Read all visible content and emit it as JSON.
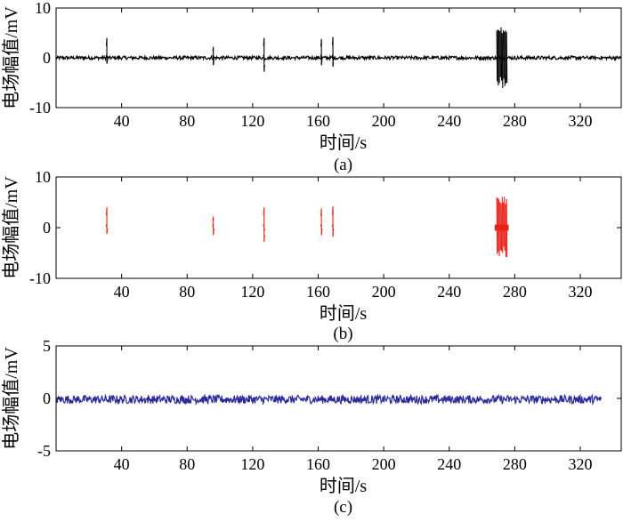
{
  "chart_data": [
    {
      "type": "line",
      "caption": "(a)",
      "xlabel": "时间/s",
      "ylabel": "电场幅值/mV",
      "xlim": [
        0,
        345
      ],
      "ylim": [
        -10,
        10
      ],
      "xticks": [
        "40",
        "80",
        "120",
        "160",
        "200",
        "240",
        "280",
        "320"
      ],
      "yticks": [
        "10",
        "0",
        "-10"
      ],
      "color": "#000000",
      "baseline": {
        "x_start": 0,
        "x_end": 345,
        "amplitude": 0.35
      },
      "spikes": [
        {
          "x": 31,
          "max": 4.0,
          "min": -1.2
        },
        {
          "x": 96,
          "max": 2.2,
          "min": -1.5
        },
        {
          "x": 127,
          "max": 4.0,
          "min": -2.8
        },
        {
          "x": 162,
          "max": 3.8,
          "min": -1.5
        },
        {
          "x": 169,
          "max": 4.2,
          "min": -1.8
        },
        {
          "x": 272,
          "max": 6.2,
          "min": -6.2,
          "width": 6
        }
      ]
    },
    {
      "type": "line",
      "caption": "(b)",
      "xlabel": "时间/s",
      "ylabel": "电场幅值/mV",
      "xlim": [
        0,
        345
      ],
      "ylim": [
        -10,
        10
      ],
      "xticks": [
        "40",
        "80",
        "120",
        "160",
        "200",
        "240",
        "280",
        "320"
      ],
      "yticks": [
        "10",
        "0",
        "-10"
      ],
      "color": "#e8231a",
      "baseline": null,
      "spikes": [
        {
          "x": 31,
          "max": 4.0,
          "min": -1.2
        },
        {
          "x": 96,
          "max": 2.2,
          "min": -1.5
        },
        {
          "x": 127,
          "max": 4.0,
          "min": -2.8
        },
        {
          "x": 162,
          "max": 3.8,
          "min": -1.5
        },
        {
          "x": 169,
          "max": 4.2,
          "min": -1.8
        },
        {
          "x": 272,
          "max": 6.2,
          "min": -6.2,
          "width": 6
        }
      ]
    },
    {
      "type": "line",
      "caption": "(c)",
      "xlabel": "时间/s",
      "ylabel": "电场幅值/mV",
      "xlim": [
        0,
        345
      ],
      "ylim": [
        -5,
        5
      ],
      "xticks": [
        "40",
        "80",
        "120",
        "160",
        "200",
        "240",
        "280",
        "320"
      ],
      "yticks": [
        "5",
        "0",
        "-5"
      ],
      "color": "#2a2a9a",
      "baseline": {
        "x_start": 0,
        "x_end": 333,
        "amplitude": 0.4,
        "offset": -0.1
      },
      "spikes": []
    }
  ]
}
